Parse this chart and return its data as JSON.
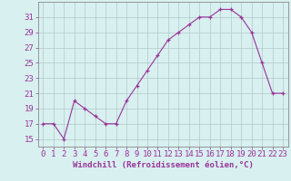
{
  "x": [
    0,
    1,
    2,
    3,
    4,
    5,
    6,
    7,
    8,
    9,
    10,
    11,
    12,
    13,
    14,
    15,
    16,
    17,
    18,
    19,
    20,
    21,
    22,
    23
  ],
  "y": [
    17,
    17,
    15,
    20,
    19,
    18,
    17,
    17,
    20,
    22,
    24,
    26,
    28,
    29,
    30,
    31,
    31,
    32,
    32,
    31,
    29,
    25,
    21,
    21
  ],
  "line_color": "#993399",
  "marker_color": "#993399",
  "bg_color": "#d8f0f0",
  "grid_color": "#b0c8c8",
  "axis_color": "#993399",
  "border_color": "#888888",
  "xlabel": "Windchill (Refroidissement éolien,°C)",
  "ylim": [
    14,
    33
  ],
  "xlim": [
    -0.5,
    23.5
  ],
  "yticks": [
    15,
    17,
    19,
    21,
    23,
    25,
    27,
    29,
    31
  ],
  "xticks": [
    0,
    1,
    2,
    3,
    4,
    5,
    6,
    7,
    8,
    9,
    10,
    11,
    12,
    13,
    14,
    15,
    16,
    17,
    18,
    19,
    20,
    21,
    22,
    23
  ],
  "xlabel_fontsize": 6.5,
  "tick_fontsize": 6.5
}
